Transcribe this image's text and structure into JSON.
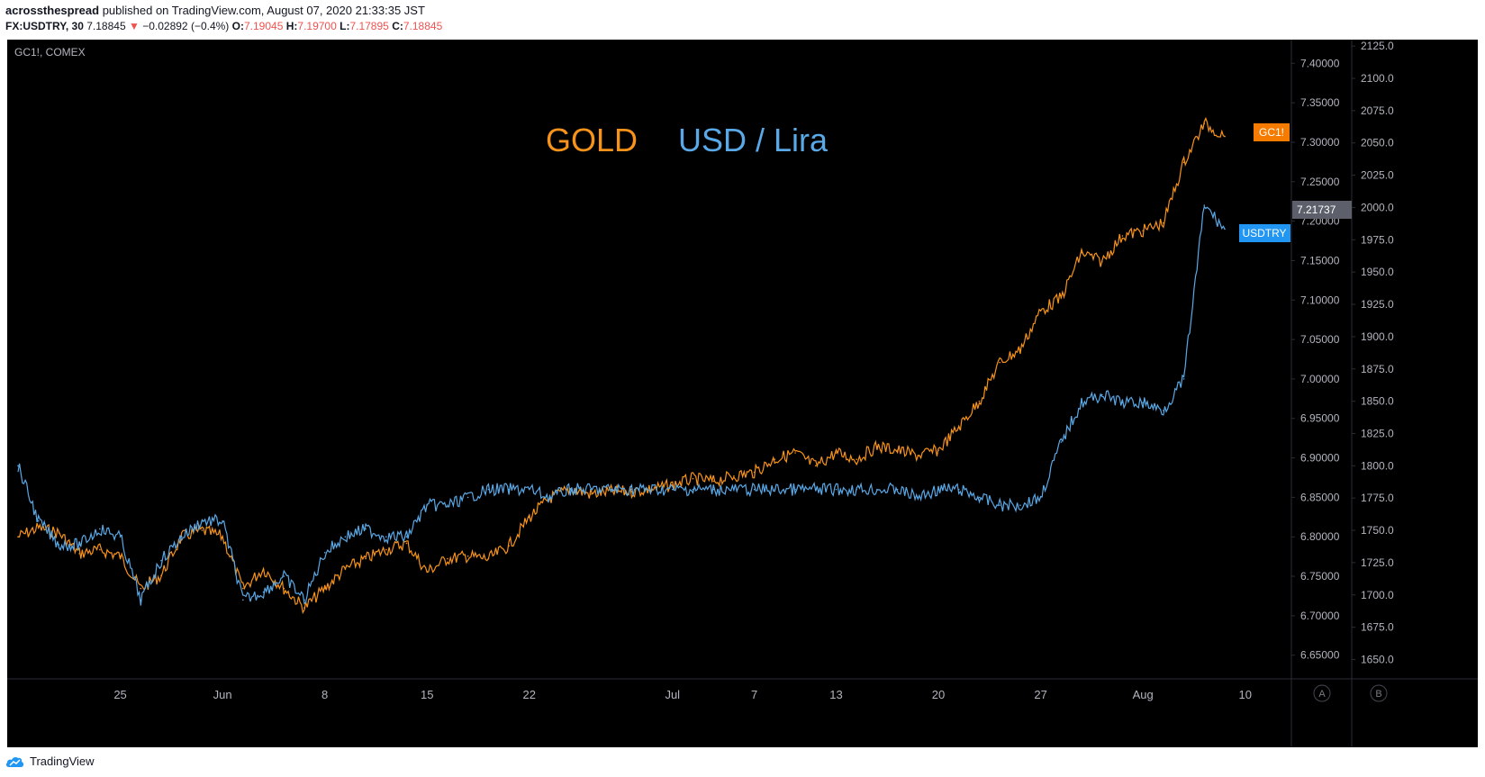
{
  "header": {
    "publisher": "acrossthespread",
    "published_text": "published on TradingView.com, August 07, 2020 21:33:35 JST",
    "symbol": "FX:USDTRY, 30",
    "last_price": "7.18845",
    "change_arrow": "▼",
    "change": "−0.02892 (−0.4%)",
    "ohlc": {
      "o_label": "O:",
      "o": "7.19045",
      "h_label": "H:",
      "h": "7.19700",
      "l_label": "L:",
      "l": "7.17895",
      "c_label": "C:",
      "c": "7.18845"
    }
  },
  "overlay_label": "GC1!, COMEX",
  "title_gold": "GOLD",
  "title_usdlira": "USD / Lira",
  "footer": {
    "brand": "TradingView"
  },
  "scale_buttons": [
    "A",
    "B"
  ],
  "colors": {
    "gold": "#f7931a",
    "usdtry": "#5aa8e6",
    "background": "#000000",
    "axis_text": "#b2b5be",
    "red": "#ef5350"
  },
  "chart_data": {
    "type": "line",
    "x_tick_labels": [
      "25",
      "Jun",
      "8",
      "15",
      "22",
      "Jul",
      "7",
      "13",
      "20",
      "27",
      "Aug",
      "10"
    ],
    "axes": {
      "left_price_scale": {
        "series": "USDTRY",
        "ticks": [
          "7.40000",
          "7.35000",
          "7.30000",
          "7.25000",
          "7.20000",
          "7.15000",
          "7.10000",
          "7.05000",
          "7.00000",
          "6.95000",
          "6.90000",
          "6.85000",
          "6.80000",
          "6.75000",
          "6.70000",
          "6.65000"
        ],
        "ylim": [
          6.62,
          7.43
        ]
      },
      "right_price_scale": {
        "series": "GC1!",
        "ticks": [
          "2125.0",
          "2100.0",
          "2075.0",
          "2050.0",
          "2025.0",
          "2000.0",
          "1975.0",
          "1950.0",
          "1925.0",
          "1900.0",
          "1875.0",
          "1850.0",
          "1825.0",
          "1800.0",
          "1775.0",
          "1750.0",
          "1725.0",
          "1700.0",
          "1675.0",
          "1650.0"
        ],
        "ylim": [
          1635,
          2130
        ]
      }
    },
    "price_tags": {
      "gold_tag": "GC1!",
      "usdtry_tag": "USDTRY",
      "crosshair_value": "7.21737"
    },
    "series": [
      {
        "name": "USDTRY",
        "axis": "left",
        "x": [
          "May 18",
          "May 19",
          "May 20",
          "May 21",
          "May 22",
          "May 25",
          "May 26",
          "May 27",
          "May 28",
          "May 29",
          "Jun 1",
          "Jun 2",
          "Jun 3",
          "Jun 4",
          "Jun 5",
          "Jun 8",
          "Jun 9",
          "Jun 10",
          "Jun 11",
          "Jun 12",
          "Jun 15",
          "Jun 16",
          "Jun 17",
          "Jun 18",
          "Jun 19",
          "Jun 22",
          "Jun 23",
          "Jun 24",
          "Jun 25",
          "Jun 26",
          "Jun 29",
          "Jun 30",
          "Jul 1",
          "Jul 2",
          "Jul 3",
          "Jul 6",
          "Jul 7",
          "Jul 8",
          "Jul 9",
          "Jul 10",
          "Jul 13",
          "Jul 14",
          "Jul 15",
          "Jul 16",
          "Jul 17",
          "Jul 20",
          "Jul 21",
          "Jul 22",
          "Jul 23",
          "Jul 24",
          "Jul 27",
          "Jul 28",
          "Jul 29",
          "Jul 30",
          "Jul 31",
          "Aug 3",
          "Aug 4",
          "Aug 5",
          "Aug 6",
          "Aug 7"
        ],
        "values": [
          6.89,
          6.82,
          6.79,
          6.79,
          6.81,
          6.8,
          6.72,
          6.77,
          6.8,
          6.82,
          6.82,
          6.72,
          6.73,
          6.75,
          6.72,
          6.78,
          6.8,
          6.81,
          6.8,
          6.8,
          6.84,
          6.84,
          6.85,
          6.86,
          6.86,
          6.86,
          6.85,
          6.86,
          6.86,
          6.86,
          6.86,
          6.86,
          6.86,
          6.86,
          6.86,
          6.86,
          6.86,
          6.86,
          6.86,
          6.86,
          6.86,
          6.86,
          6.86,
          6.86,
          6.85,
          6.86,
          6.86,
          6.85,
          6.84,
          6.84,
          6.85,
          6.92,
          6.97,
          6.98,
          6.97,
          6.97,
          6.96,
          7.0,
          7.22,
          7.19
        ]
      },
      {
        "name": "GC1!",
        "axis": "right",
        "x": [
          "May 18",
          "May 19",
          "May 20",
          "May 21",
          "May 22",
          "May 25",
          "May 26",
          "May 27",
          "May 28",
          "May 29",
          "Jun 1",
          "Jun 2",
          "Jun 3",
          "Jun 4",
          "Jun 5",
          "Jun 8",
          "Jun 9",
          "Jun 10",
          "Jun 11",
          "Jun 12",
          "Jun 15",
          "Jun 16",
          "Jun 17",
          "Jun 18",
          "Jun 19",
          "Jun 22",
          "Jun 23",
          "Jun 24",
          "Jun 25",
          "Jun 26",
          "Jun 29",
          "Jun 30",
          "Jul 1",
          "Jul 2",
          "Jul 3",
          "Jul 6",
          "Jul 7",
          "Jul 8",
          "Jul 9",
          "Jul 10",
          "Jul 13",
          "Jul 14",
          "Jul 15",
          "Jul 16",
          "Jul 17",
          "Jul 20",
          "Jul 21",
          "Jul 22",
          "Jul 23",
          "Jul 24",
          "Jul 27",
          "Jul 28",
          "Jul 29",
          "Jul 30",
          "Jul 31",
          "Aug 3",
          "Aug 4",
          "Aug 5",
          "Aug 6",
          "Aug 7"
        ],
        "values": [
          1745,
          1752,
          1748,
          1732,
          1735,
          1730,
          1705,
          1715,
          1745,
          1750,
          1745,
          1705,
          1720,
          1705,
          1690,
          1705,
          1720,
          1728,
          1735,
          1740,
          1718,
          1728,
          1730,
          1728,
          1738,
          1760,
          1775,
          1782,
          1778,
          1780,
          1780,
          1782,
          1785,
          1790,
          1788,
          1792,
          1795,
          1805,
          1810,
          1800,
          1810,
          1805,
          1815,
          1812,
          1808,
          1812,
          1830,
          1850,
          1880,
          1890,
          1920,
          1930,
          1965,
          1958,
          1978,
          1982,
          1988,
          2035,
          2065,
          2055
        ]
      }
    ]
  }
}
